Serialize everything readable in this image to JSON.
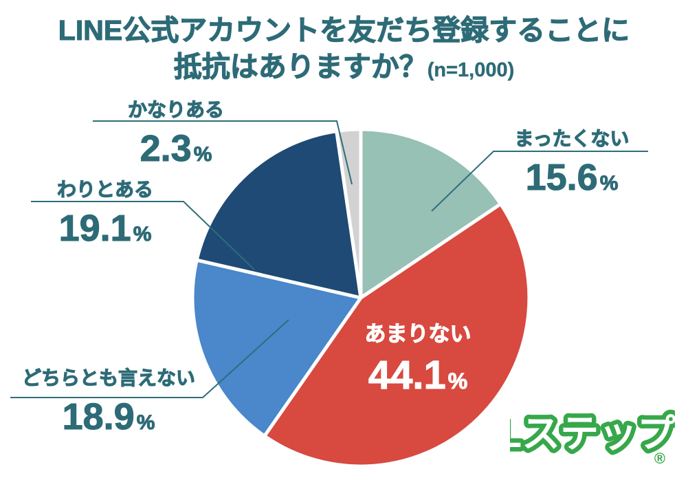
{
  "title": {
    "line1": "LINE公式アカウントを友だち登録することに",
    "line2": "抵抗はありますか？",
    "sample_size": "(n=1,000)"
  },
  "chart_data": {
    "type": "pie",
    "title": "LINE公式アカウントを友だち登録することに抵抗はありますか？",
    "sample_size_label": "(n=1,000)",
    "n": 1000,
    "unit": "%",
    "start_angle_deg": 0,
    "direction": "clockwise",
    "legend_position": "callout-labels",
    "segments": [
      {
        "id": "mattaku",
        "label": "まったくない",
        "value": 15.6,
        "display": "15.6",
        "color": "#96c1b4"
      },
      {
        "id": "amari",
        "label": "あまりない",
        "value": 44.1,
        "display": "44.1",
        "color": "#d8493f"
      },
      {
        "id": "dochira",
        "label": "どちらとも言えない",
        "value": 18.9,
        "display": "18.9",
        "color": "#4a87cb"
      },
      {
        "id": "warito",
        "label": "わりとある",
        "value": 19.1,
        "display": "19.1",
        "color": "#1e4a75"
      },
      {
        "id": "kanari",
        "label": "かなりある",
        "value": 2.3,
        "display": "2.3",
        "color": "#d2d2d2"
      }
    ]
  },
  "percent_sign": "%",
  "colors": {
    "background": "#ffffff",
    "title_text": "#2d6b77",
    "label_text": "#2d6b77",
    "center_label_text": "#ffffff",
    "leader_line": "#2f6d7a",
    "slice_gap": "#ffffff",
    "logo_green": "#36a84a"
  },
  "logo": {
    "text": "Lステップ",
    "registered_mark": "®"
  }
}
